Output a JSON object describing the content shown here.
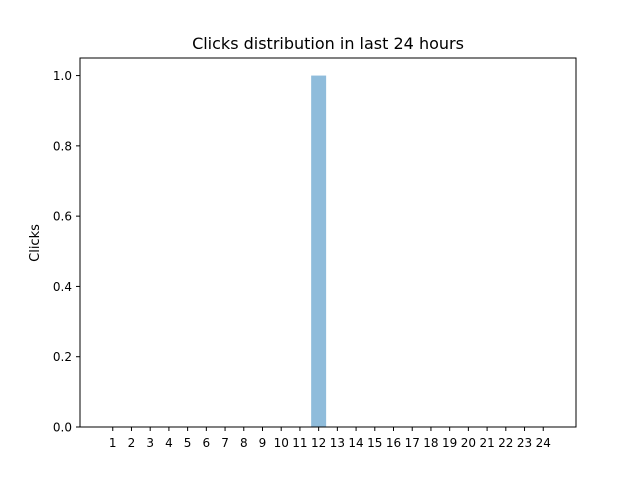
{
  "chart_data": {
    "type": "bar",
    "title": "Clicks distribution in last 24 hours",
    "xlabel": "",
    "ylabel": "Clicks",
    "categories": [
      "1",
      "2",
      "3",
      "4",
      "5",
      "6",
      "7",
      "8",
      "9",
      "10",
      "11",
      "12",
      "13",
      "14",
      "15",
      "16",
      "17",
      "18",
      "19",
      "20",
      "21",
      "22",
      "23",
      "24"
    ],
    "values": [
      0,
      0,
      0,
      0,
      0,
      0,
      0,
      0,
      0,
      0,
      0,
      1,
      0,
      0,
      0,
      0,
      0,
      0,
      0,
      0,
      0,
      0,
      0,
      0
    ],
    "ylim": [
      0,
      1.05
    ],
    "yticks": [
      "0.0",
      "0.2",
      "0.4",
      "0.6",
      "0.8",
      "1.0"
    ],
    "bar_color": "#8fbcdb",
    "grid": false,
    "legend": "none"
  }
}
